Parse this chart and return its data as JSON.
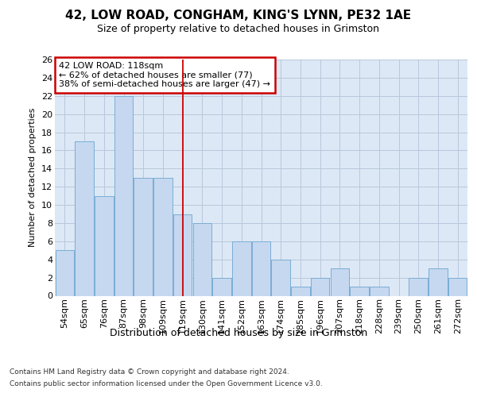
{
  "title": "42, LOW ROAD, CONGHAM, KING'S LYNN, PE32 1AE",
  "subtitle": "Size of property relative to detached houses in Grimston",
  "xlabel": "Distribution of detached houses by size in Grimston",
  "ylabel": "Number of detached properties",
  "footer_line1": "Contains HM Land Registry data © Crown copyright and database right 2024.",
  "footer_line2": "Contains public sector information licensed under the Open Government Licence v3.0.",
  "bar_color": "#c5d8f0",
  "bar_edge_color": "#7aadd4",
  "grid_color": "#b8c8dc",
  "background_color": "#dce8f5",
  "annotation_box_color": "#cc0000",
  "vline_color": "#cc0000",
  "categories": [
    "54sqm",
    "65sqm",
    "76sqm",
    "87sqm",
    "98sqm",
    "109sqm",
    "119sqm",
    "130sqm",
    "141sqm",
    "152sqm",
    "163sqm",
    "174sqm",
    "185sqm",
    "196sqm",
    "207sqm",
    "218sqm",
    "228sqm",
    "239sqm",
    "250sqm",
    "261sqm",
    "272sqm"
  ],
  "values": [
    5,
    17,
    11,
    22,
    13,
    13,
    9,
    8,
    2,
    6,
    6,
    4,
    1,
    2,
    3,
    1,
    1,
    0,
    2,
    3,
    2
  ],
  "vline_position": 6,
  "annotation_text_line1": "42 LOW ROAD: 118sqm",
  "annotation_text_line2": "← 62% of detached houses are smaller (77)",
  "annotation_text_line3": "38% of semi-detached houses are larger (47) →",
  "ylim": [
    0,
    26
  ],
  "yticks": [
    0,
    2,
    4,
    6,
    8,
    10,
    12,
    14,
    16,
    18,
    20,
    22,
    24,
    26
  ],
  "title_fontsize": 11,
  "subtitle_fontsize": 9,
  "ylabel_fontsize": 8,
  "xlabel_fontsize": 9,
  "tick_fontsize": 8,
  "footer_fontsize": 6.5
}
